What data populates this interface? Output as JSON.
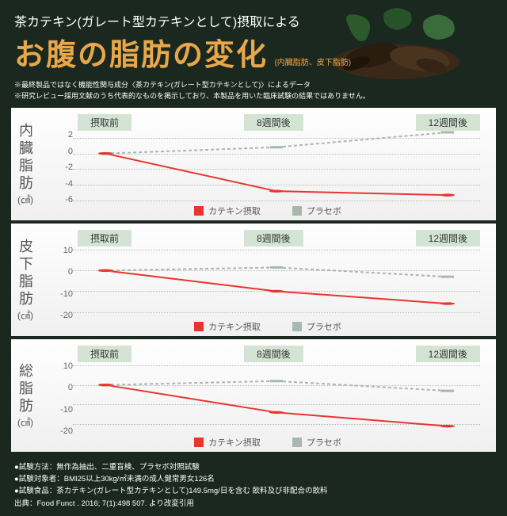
{
  "header": {
    "sub_title": "茶カテキン(ガレート型カテキンとして)摂取による",
    "main_title": "お腹の脂肪の変化",
    "title_note": "(内臓脂肪、皮下脂肪)"
  },
  "disclaimers": [
    "※最終製品ではなく機能性関与成分〈茶カテキン(ガレート型カテキンとして)〉によるデータ",
    "※研究レビュー採用文献のうち代表的なものを掲示しており、本製品を用いた臨床試験の結果ではありません。"
  ],
  "time_labels": [
    "摂取前",
    "8週間後",
    "12週間後"
  ],
  "legend": {
    "catechin": "カテキン摂取",
    "placebo": "プラセボ"
  },
  "colors": {
    "catechin": "#e8352e",
    "placebo": "#a8b8b0",
    "time_bg": "#d4e4d4",
    "grid": "#bbbbbb",
    "title": "#e8a84a",
    "bg": "#1a2820"
  },
  "charts": [
    {
      "label": "内臓脂肪",
      "unit": "(㎠)",
      "y_ticks": [
        2,
        0,
        -2,
        -4,
        -6
      ],
      "y_max": 3,
      "y_min": -6.5,
      "catechin": [
        0,
        -4.8,
        -5.3
      ],
      "placebo": [
        0,
        0.8,
        2.7
      ]
    },
    {
      "label": "皮下脂肪",
      "unit": "(㎠)",
      "y_ticks": [
        10,
        0,
        -10,
        -20
      ],
      "y_max": 12,
      "y_min": -24,
      "catechin": [
        0,
        -10,
        -16
      ],
      "placebo": [
        0,
        1.5,
        -3
      ]
    },
    {
      "label": "総脂肪",
      "unit": "(㎠)",
      "y_ticks": [
        10,
        0,
        -10,
        -20
      ],
      "y_max": 12,
      "y_min": -26,
      "catechin": [
        0,
        -14,
        -21
      ],
      "placebo": [
        0,
        2,
        -3
      ]
    }
  ],
  "footer": [
    "●試験方法：無作為抽出、二重盲検、プラセボ対照試験",
    "●試験対象者：BMI25以上30kg/㎡未満の成人健常男女126名",
    "●試験食品：茶カテキン(ガレート型カテキンとして)149.5mg/日を含む 飲料及び非配合の飲料",
    "出典：Food Funct . 2016; 7(1):498 507. より改変引用"
  ]
}
